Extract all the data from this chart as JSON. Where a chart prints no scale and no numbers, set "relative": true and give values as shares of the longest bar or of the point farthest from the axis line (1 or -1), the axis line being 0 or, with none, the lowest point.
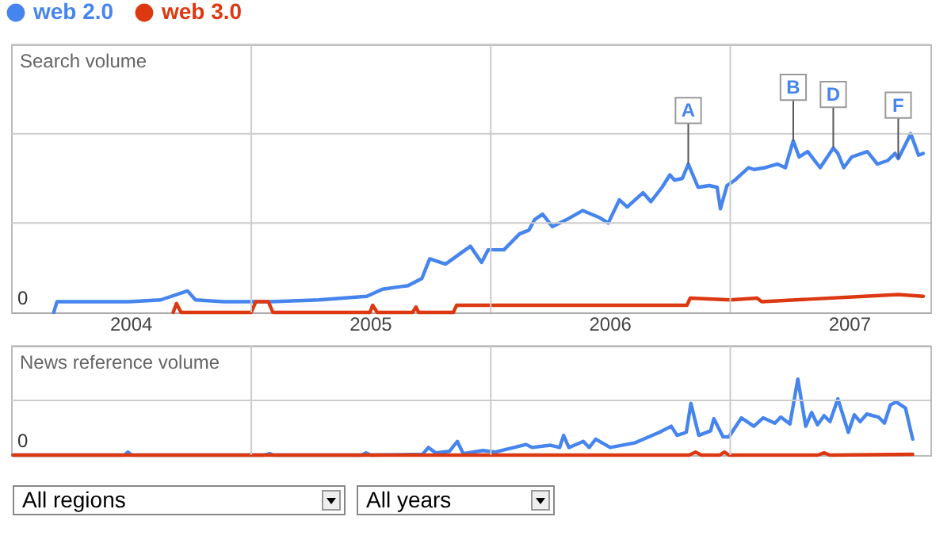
{
  "chart_data": [
    {
      "type": "line",
      "relative": true,
      "ylabel": "Search volume",
      "legend": "top left",
      "grid": true,
      "xlim": [
        "2004-01-01",
        "2007-11-02"
      ],
      "xticks": [
        {
          "value": "2004-07-01",
          "label": "2004"
        },
        {
          "value": "2005-07-01",
          "label": "2005"
        },
        {
          "value": "2006-07-01",
          "label": "2006"
        },
        {
          "value": "2007-07-01",
          "label": "2007"
        }
      ],
      "annotations": [
        "0",
        {
          "text": "A",
          "x": "2006-10-29",
          "y": 0.83
        },
        {
          "text": "B",
          "x": "2007-04-07",
          "y": 0.96
        },
        {
          "text": "D",
          "x": "2007-06-07",
          "y": 0.92
        },
        {
          "text": "F",
          "x": "2007-09-14",
          "y": 0.86
        }
      ],
      "series": [
        {
          "name": "web 2.0",
          "color": "#4684ee",
          "x": [
            "2004-03-06",
            "2004-03-11",
            "2004-05-11",
            "2004-06-29",
            "2004-08-16",
            "2004-09-26",
            "2004-10-08",
            "2004-11-20",
            "2005-02-01",
            "2005-04-14",
            "2005-06-26",
            "2005-07-20",
            "2005-08-28",
            "2005-09-18",
            "2005-09-30",
            "2005-10-24",
            "2005-12-01",
            "2005-12-18",
            "2005-12-28",
            "2006-01-21",
            "2006-02-14",
            "2006-02-28",
            "2006-03-09",
            "2006-03-21",
            "2006-04-05",
            "2006-04-27",
            "2006-05-21",
            "2006-06-16",
            "2006-06-29",
            "2006-07-16",
            "2006-07-28",
            "2006-08-21",
            "2006-09-02",
            "2006-09-19",
            "2006-10-01",
            "2006-10-08",
            "2006-10-20",
            "2006-10-29",
            "2006-11-13",
            "2006-11-30",
            "2006-12-12",
            "2006-12-17",
            "2006-12-27",
            "2007-01-08",
            "2007-01-17",
            "2007-01-29",
            "2007-02-06",
            "2007-02-23",
            "2007-03-14",
            "2007-03-26",
            "2007-04-07",
            "2007-04-16",
            "2007-04-29",
            "2007-05-18",
            "2007-06-07",
            "2007-06-14",
            "2007-06-23",
            "2007-07-05",
            "2007-07-29",
            "2007-08-13",
            "2007-08-29",
            "2007-09-09",
            "2007-09-14",
            "2007-10-03",
            "2007-10-15",
            "2007-10-22"
          ],
          "values": [
            0,
            0.06,
            0.06,
            0.06,
            0.07,
            0.12,
            0.07,
            0.06,
            0.06,
            0.07,
            0.09,
            0.13,
            0.15,
            0.19,
            0.3,
            0.27,
            0.37,
            0.28,
            0.35,
            0.35,
            0.44,
            0.46,
            0.52,
            0.55,
            0.48,
            0.52,
            0.57,
            0.53,
            0.5,
            0.63,
            0.59,
            0.67,
            0.62,
            0.7,
            0.77,
            0.74,
            0.75,
            0.83,
            0.7,
            0.71,
            0.7,
            0.58,
            0.71,
            0.74,
            0.77,
            0.81,
            0.8,
            0.81,
            0.83,
            0.81,
            0.96,
            0.87,
            0.9,
            0.81,
            0.92,
            0.89,
            0.81,
            0.87,
            0.9,
            0.83,
            0.85,
            0.89,
            0.86,
            1,
            0.88,
            0.89
          ]
        },
        {
          "name": "web 3.0",
          "color": "#dc3912",
          "x": [
            "2004-09-04",
            "2004-09-09",
            "2004-09-16",
            "2005-01-01",
            "2005-01-08",
            "2005-01-27",
            "2005-02-03",
            "2005-07-01",
            "2005-07-05",
            "2005-07-12",
            "2005-09-04",
            "2005-09-09",
            "2005-09-13",
            "2005-11-05",
            "2005-11-10",
            "2006-04-10",
            "2006-10-27",
            "2006-11-01",
            "2007-01-01",
            "2007-02-11",
            "2007-02-18",
            "2007-07-24",
            "2007-09-14",
            "2007-10-22"
          ],
          "values": [
            0,
            0.05,
            0,
            0,
            0.06,
            0.06,
            0,
            0,
            0.04,
            0,
            0,
            0.03,
            0,
            0,
            0.04,
            0.04,
            0.04,
            0.08,
            0.07,
            0.08,
            0.06,
            0.09,
            0.1,
            0.09
          ]
        }
      ]
    },
    {
      "type": "line",
      "relative": true,
      "ylabel": "News reference volume",
      "grid": true,
      "tick_labels": false,
      "annotations": [
        "0"
      ],
      "xlim": [
        "2004-01-01",
        "2007-11-02"
      ],
      "series": [
        {
          "color": "#4684ee",
          "x": [
            "2004-01-04",
            "2004-06-22",
            "2004-06-27",
            "2004-07-03",
            "2005-01-21",
            "2005-01-29",
            "2005-02-04",
            "2005-06-18",
            "2005-06-25",
            "2005-07-02",
            "2005-09-19",
            "2005-09-28",
            "2005-10-09",
            "2005-10-30",
            "2005-11-11",
            "2005-11-20",
            "2005-12-20",
            "2006-01-08",
            "2006-02-24",
            "2006-03-05",
            "2006-04-02",
            "2006-04-16",
            "2006-04-22",
            "2006-04-30",
            "2006-05-22",
            "2006-05-31",
            "2006-06-10",
            "2006-07-02",
            "2006-08-08",
            "2006-09-15",
            "2006-10-03",
            "2006-10-12",
            "2006-10-26",
            "2006-11-02",
            "2006-11-14",
            "2006-12-02",
            "2006-12-07",
            "2006-12-21",
            "2006-12-30",
            "2007-01-18",
            "2007-02-06",
            "2007-02-20",
            "2007-03-10",
            "2007-03-19",
            "2007-04-02",
            "2007-04-14",
            "2007-04-26",
            "2007-05-05",
            "2007-05-14",
            "2007-05-24",
            "2007-06-02",
            "2007-06-14",
            "2007-06-30",
            "2007-07-09",
            "2007-07-18",
            "2007-07-28",
            "2007-08-15",
            "2007-08-24",
            "2007-09-02",
            "2007-09-11",
            "2007-09-25",
            "2007-10-06"
          ],
          "values": [
            0,
            0,
            0.04,
            0,
            0,
            0.02,
            0,
            0,
            0.03,
            0,
            0.01,
            0.1,
            0.03,
            0.05,
            0.18,
            0.02,
            0.06,
            0.04,
            0.14,
            0.1,
            0.13,
            0.1,
            0.26,
            0.1,
            0.18,
            0.1,
            0.21,
            0.1,
            0.16,
            0.3,
            0.38,
            0.26,
            0.3,
            0.68,
            0.26,
            0.32,
            0.48,
            0.24,
            0.24,
            0.49,
            0.38,
            0.49,
            0.42,
            0.5,
            0.41,
            1,
            0.38,
            0.56,
            0.4,
            0.52,
            0.44,
            0.74,
            0.3,
            0.53,
            0.44,
            0.54,
            0.5,
            0.42,
            0.66,
            0.7,
            0.62,
            0.21
          ]
        },
        {
          "color": "#dc3912",
          "x": [
            "2004-01-04",
            "2006-10-30",
            "2006-11-09",
            "2006-11-18",
            "2006-12-16",
            "2006-12-23",
            "2006-12-30",
            "2007-05-14",
            "2007-05-24",
            "2007-06-02",
            "2007-10-06"
          ],
          "values": [
            0,
            0,
            0.04,
            0,
            0,
            0.04,
            0,
            0,
            0.03,
            0,
            0.01
          ]
        }
      ]
    },
    {
      "type": "other",
      "annotations": [
        "All regions",
        "All years"
      ]
    }
  ]
}
